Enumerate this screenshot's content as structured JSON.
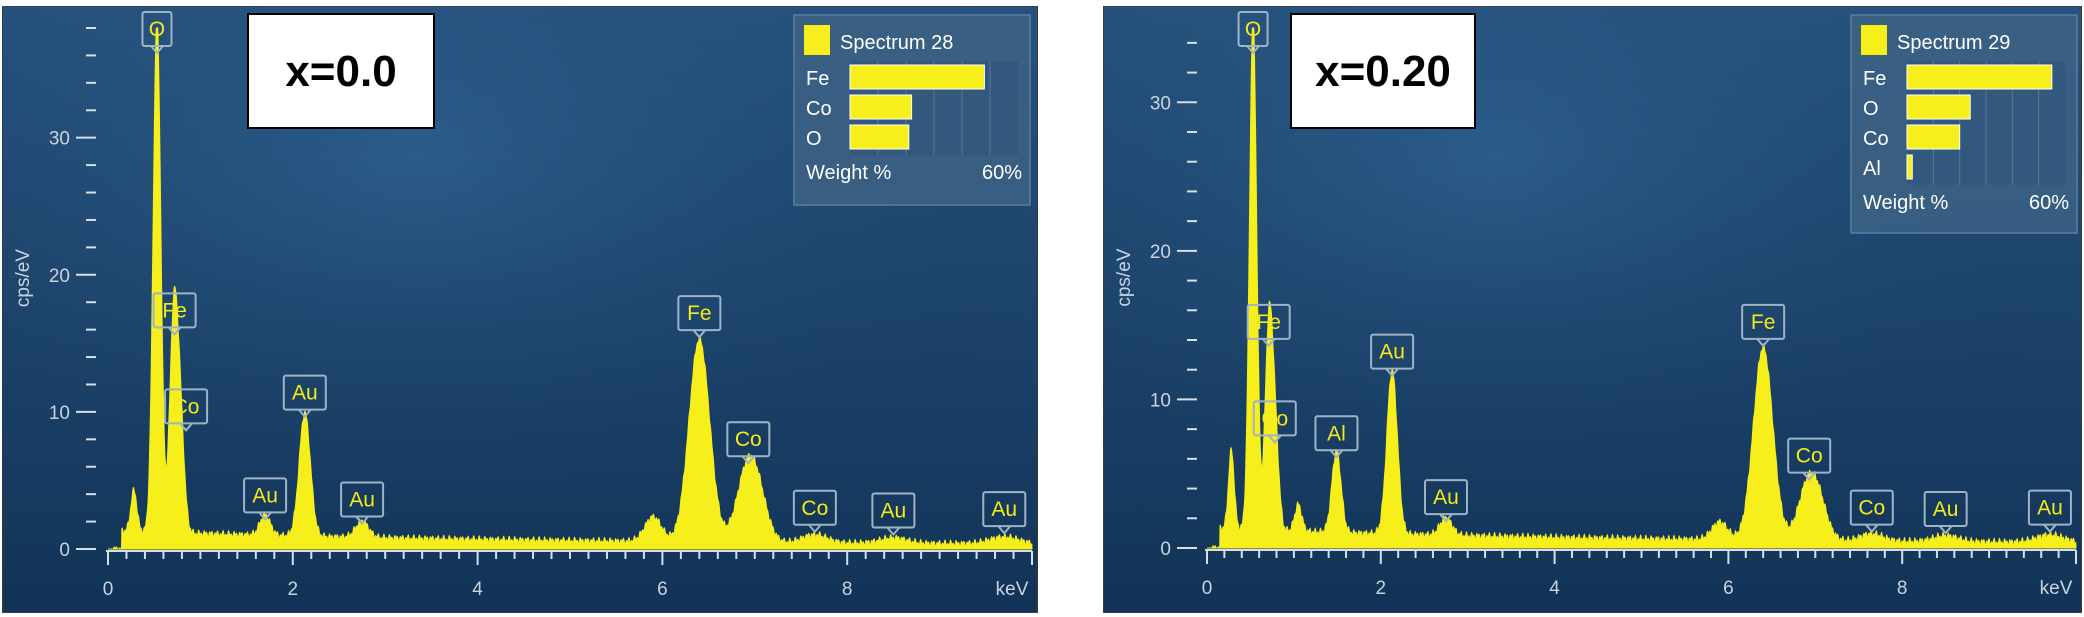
{
  "chart_data": [
    {
      "type": "area",
      "sample_label": "x=0.0",
      "legend": {
        "title": "Spectrum 28",
        "elements": [
          {
            "name": "Fe",
            "weight_pct": 48
          },
          {
            "name": "Co",
            "weight_pct": 22
          },
          {
            "name": "O",
            "weight_pct": 21
          }
        ],
        "footer_label": "Weight %",
        "footer_value": "60%",
        "axis_max_pct": 60
      },
      "xlabel": "keV",
      "ylabel": "cps/eV",
      "xlim": [
        0,
        10
      ],
      "ylim": [
        0,
        38
      ],
      "xticks": [
        "0",
        "2",
        "4",
        "6",
        "8"
      ],
      "yticks": [
        "0",
        "10",
        "20",
        "30"
      ],
      "peaks": [
        {
          "element": "O",
          "kev": 0.53,
          "height": 37.5
        },
        {
          "element": "Fe",
          "kev": 0.71,
          "height": 15
        },
        {
          "element": "Co",
          "kev": 0.78,
          "height": 8
        },
        {
          "element": "Au",
          "kev": 1.7,
          "height": 1.5
        },
        {
          "element": "Au",
          "kev": 2.13,
          "height": 9
        },
        {
          "element": "Au",
          "kev": 2.75,
          "height": 1.2
        },
        {
          "element": "Fe",
          "kev": 6.4,
          "height": 14.8
        },
        {
          "element": "Co",
          "kev": 6.93,
          "height": 5.6
        },
        {
          "element": "Co",
          "kev": 7.65,
          "height": 0.6
        },
        {
          "element": "Au",
          "kev": 8.5,
          "height": 0.4
        },
        {
          "element": "Au",
          "kev": 9.7,
          "height": 0.5
        }
      ],
      "minor_peaks": [
        {
          "kev": 0.28,
          "height": 3
        },
        {
          "kev": 5.9,
          "height": 1.8
        },
        {
          "kev": 7.06,
          "height": 1.5
        }
      ]
    },
    {
      "type": "area",
      "sample_label": "x=0.20",
      "legend": {
        "title": "Spectrum 29",
        "elements": [
          {
            "name": "Fe",
            "weight_pct": 55
          },
          {
            "name": "O",
            "weight_pct": 24
          },
          {
            "name": "Co",
            "weight_pct": 20
          },
          {
            "name": "Al",
            "weight_pct": 2
          }
        ],
        "footer_label": "Weight %",
        "footer_value": "60%",
        "axis_max_pct": 60
      },
      "xlabel": "keV",
      "ylabel": "cps/eV",
      "xlim": [
        0,
        10
      ],
      "ylim": [
        0,
        35
      ],
      "xticks": [
        "0",
        "2",
        "4",
        "6",
        "8"
      ],
      "yticks": [
        "0",
        "10",
        "20",
        "30"
      ],
      "peaks": [
        {
          "element": "O",
          "kev": 0.53,
          "height": 34.5
        },
        {
          "element": "Fe",
          "kev": 0.71,
          "height": 13
        },
        {
          "element": "Co",
          "kev": 0.78,
          "height": 6.5
        },
        {
          "element": "Al",
          "kev": 1.49,
          "height": 5.5
        },
        {
          "element": "Au",
          "kev": 2.13,
          "height": 11
        },
        {
          "element": "Au",
          "kev": 2.75,
          "height": 1.2
        },
        {
          "element": "Fe",
          "kev": 6.4,
          "height": 13
        },
        {
          "element": "Co",
          "kev": 6.93,
          "height": 4
        },
        {
          "element": "Co",
          "kev": 7.65,
          "height": 0.5
        },
        {
          "element": "Au",
          "kev": 8.5,
          "height": 0.4
        },
        {
          "element": "Au",
          "kev": 9.7,
          "height": 0.5
        }
      ],
      "minor_peaks": [
        {
          "kev": 0.28,
          "height": 5.3
        },
        {
          "kev": 1.05,
          "height": 1.8
        },
        {
          "kev": 5.9,
          "height": 1.2
        },
        {
          "kev": 7.06,
          "height": 1.2
        }
      ]
    }
  ],
  "colors": {
    "background_top": "#27547f",
    "background_bottom": "#123357",
    "spectrum": "#f6ef1c",
    "label_border": "#9fb3c7",
    "legend_bg": "#3d6285"
  }
}
